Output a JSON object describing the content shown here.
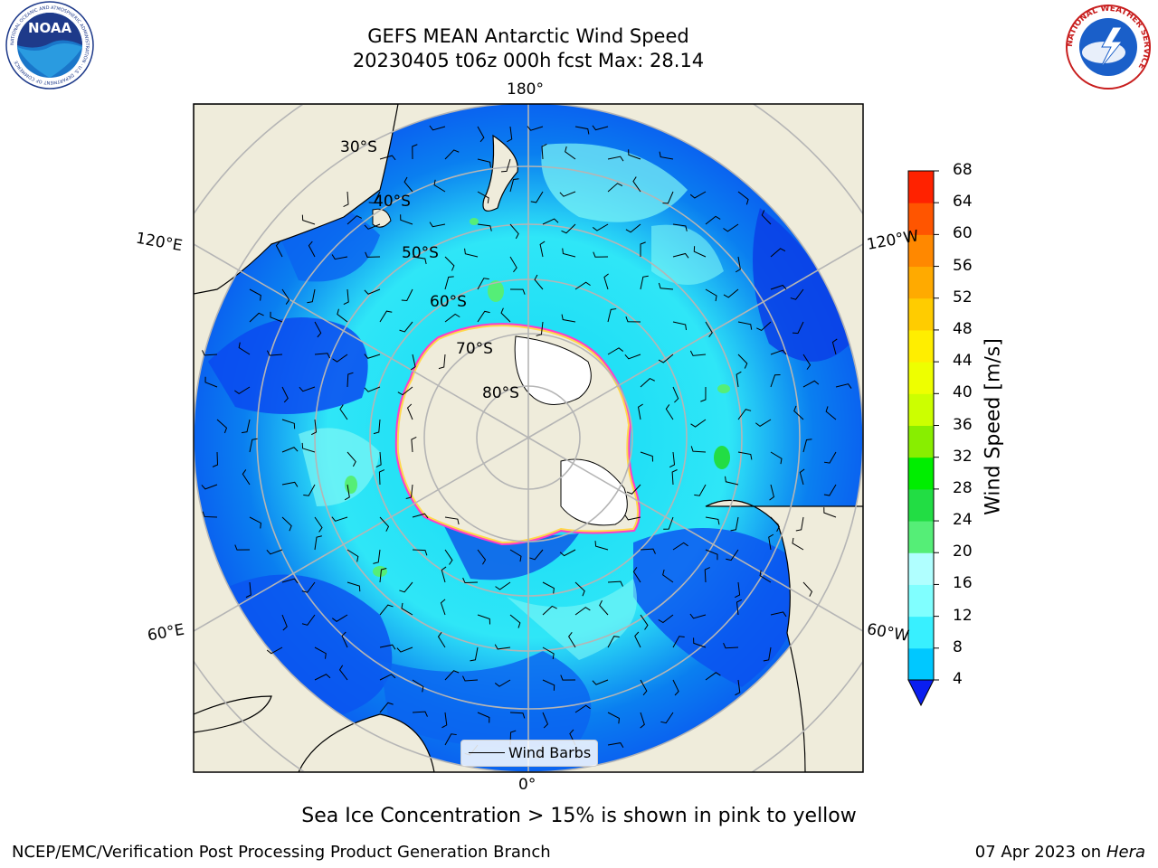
{
  "title": {
    "line1": "GEFS MEAN Antarctic Wind Speed",
    "line2": "20230405 t06z 000h fcst   Max: 28.14"
  },
  "map": {
    "projection": "south-polar-stereographic",
    "longitude_labels": {
      "top": "180°",
      "bottom": "0°",
      "upper_left": "120°E",
      "upper_right": "120°W",
      "lower_left": "60°E",
      "lower_right": "60°W"
    },
    "latitude_labels": [
      "30°S",
      "40°S",
      "50°S",
      "60°S",
      "70°S",
      "80°S"
    ],
    "legend_label": "Wind Barbs",
    "colors": {
      "ocean_low": "#0a63f0",
      "ocean_mid": "#11d8f5",
      "ocean_high": "#7ff7f5",
      "land": "#efecdb",
      "ice_edge": "#ff3ec8",
      "grid": "#b5b5b5"
    }
  },
  "colorbar": {
    "label": "Wind Speed [m/s]",
    "ticks": [
      "4",
      "8",
      "12",
      "16",
      "20",
      "24",
      "28",
      "32",
      "36",
      "40",
      "44",
      "48",
      "52",
      "56",
      "60",
      "64",
      "68"
    ],
    "colors": [
      "#0060ff",
      "#00c8ff",
      "#38f0ff",
      "#80ffff",
      "#b0ffff",
      "#55ee77",
      "#22dd44",
      "#00ee00",
      "#88ee00",
      "#ccff00",
      "#eeff00",
      "#ffee00",
      "#ffcc00",
      "#ffaa00",
      "#ff8800",
      "#ff5500",
      "#ff2200",
      "#ff0000"
    ],
    "extend_color": "#0a1ef0"
  },
  "note": "Sea Ice Concentration > 15% is shown in pink to yellow",
  "footer": {
    "left": "NCEP/EMC/Verification Post Processing Product Generation Branch",
    "right_date": "07 Apr 2023 on ",
    "right_machine": "Hera"
  },
  "logos": {
    "left_icon": "noaa-logo",
    "right_icon": "nws-logo",
    "left_text": "NOAA",
    "left_ring_text": "NATIONAL OCEANIC AND ATMOSPHERIC ADMINISTRATION · U.S. DEPARTMENT OF COMMERCE",
    "right_ring_text": "NATIONAL WEATHER SERVICE"
  }
}
